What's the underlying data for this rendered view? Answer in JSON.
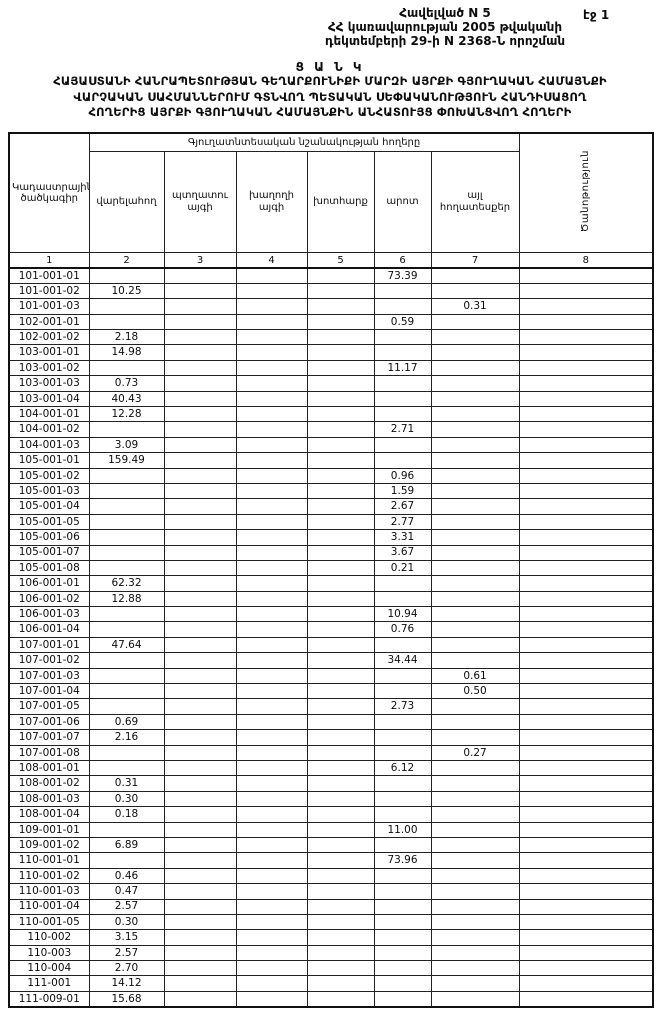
{
  "header": {
    "appendix": "Հավելված N 5",
    "decree_line1": "ՀՀ կառավարության 2005 թվականի",
    "decree_line2": "դեկտեմբերի 29-ի N 2368-Ն որոշման",
    "page_label": "էջ 1"
  },
  "title": {
    "main": "Ց Ա Ն Կ",
    "line1": "ՀԱՅԱՍՏԱՆԻ ՀԱՆՐԱՊԵՏՈՒԹՅԱՆ ԳԵՂԱՐՔՈՒՆԻՔԻ ՄԱՐԶԻ ԱՅՐՔԻ ԳՅՈՒՂԱԿԱՆ ՀԱՄԱՅՆՔԻ",
    "line2": "ՎԱՐՉԱԿԱՆ ՍԱՀՄԱՆՆԵՐՈՒՄ ԳՏՆՎՈՂ ՊԵՏԱԿԱՆ ՍԵՓԱԿԱՆՈՒԹՅՈՒՆ ՀԱՆԴԻՍԱՑՈՂ",
    "line3": "ՀՈՂԵՐԻՑ ԱՅՐՔԻ ԳՅՈՒՂԱԿԱՆ ՀԱՄԱՅՆՔԻՆ ԱՆՀԱՏՈՒՅՑ ՓՈԽԱՆՑՎՈՂ ՀՈՂԵՐԻ"
  },
  "table": {
    "code_header": "Կադաստրային ծածկագիր",
    "group_header": "Գյուղատնտեսական նշանակության հողերը",
    "sub_headers": [
      "վարելահող",
      "պտղատու այգի",
      "խաղողի այգի",
      "խոտհարք",
      "արոտ",
      "այլ հողատեսքեր"
    ],
    "note_header": "Ծանոթություն",
    "column_numbers": [
      "1",
      "2",
      "3",
      "4",
      "5",
      "6",
      "7",
      "8"
    ],
    "rows": [
      {
        "code": "101-001-01",
        "cells": [
          "",
          "",
          "",
          "",
          "73.39",
          "",
          ""
        ]
      },
      {
        "code": "101-001-02",
        "cells": [
          "10.25",
          "",
          "",
          "",
          "",
          "",
          ""
        ]
      },
      {
        "code": "101-001-03",
        "cells": [
          "",
          "",
          "",
          "",
          "",
          "0.31",
          ""
        ]
      },
      {
        "code": "102-001-01",
        "cells": [
          "",
          "",
          "",
          "",
          "0.59",
          "",
          ""
        ]
      },
      {
        "code": "102-001-02",
        "cells": [
          "2.18",
          "",
          "",
          "",
          "",
          "",
          ""
        ]
      },
      {
        "code": "103-001-01",
        "cells": [
          "14.98",
          "",
          "",
          "",
          "",
          "",
          ""
        ]
      },
      {
        "code": "103-001-02",
        "cells": [
          "",
          "",
          "",
          "",
          "11.17",
          "",
          ""
        ]
      },
      {
        "code": "103-001-03",
        "cells": [
          "0.73",
          "",
          "",
          "",
          "",
          "",
          ""
        ]
      },
      {
        "code": "103-001-04",
        "cells": [
          "40.43",
          "",
          "",
          "",
          "",
          "",
          ""
        ]
      },
      {
        "code": "104-001-01",
        "cells": [
          "12.28",
          "",
          "",
          "",
          "",
          "",
          ""
        ]
      },
      {
        "code": "104-001-02",
        "cells": [
          "",
          "",
          "",
          "",
          "2.71",
          "",
          ""
        ]
      },
      {
        "code": "104-001-03",
        "cells": [
          "3.09",
          "",
          "",
          "",
          "",
          "",
          ""
        ]
      },
      {
        "code": "105-001-01",
        "cells": [
          "159.49",
          "",
          "",
          "",
          "",
          "",
          ""
        ]
      },
      {
        "code": "105-001-02",
        "cells": [
          "",
          "",
          "",
          "",
          "0.96",
          "",
          ""
        ]
      },
      {
        "code": "105-001-03",
        "cells": [
          "",
          "",
          "",
          "",
          "1.59",
          "",
          ""
        ]
      },
      {
        "code": "105-001-04",
        "cells": [
          "",
          "",
          "",
          "",
          "2.67",
          "",
          ""
        ]
      },
      {
        "code": "105-001-05",
        "cells": [
          "",
          "",
          "",
          "",
          "2.77",
          "",
          ""
        ]
      },
      {
        "code": "105-001-06",
        "cells": [
          "",
          "",
          "",
          "",
          "3.31",
          "",
          ""
        ]
      },
      {
        "code": "105-001-07",
        "cells": [
          "",
          "",
          "",
          "",
          "3.67",
          "",
          ""
        ]
      },
      {
        "code": "105-001-08",
        "cells": [
          "",
          "",
          "",
          "",
          "0.21",
          "",
          ""
        ]
      },
      {
        "code": "106-001-01",
        "cells": [
          "62.32",
          "",
          "",
          "",
          "",
          "",
          ""
        ]
      },
      {
        "code": "106-001-02",
        "cells": [
          "12.88",
          "",
          "",
          "",
          "",
          "",
          ""
        ]
      },
      {
        "code": "106-001-03",
        "cells": [
          "",
          "",
          "",
          "",
          "10.94",
          "",
          ""
        ]
      },
      {
        "code": "106-001-04",
        "cells": [
          "",
          "",
          "",
          "",
          "0.76",
          "",
          ""
        ]
      },
      {
        "code": "107-001-01",
        "cells": [
          "47.64",
          "",
          "",
          "",
          "",
          "",
          ""
        ]
      },
      {
        "code": "107-001-02",
        "cells": [
          "",
          "",
          "",
          "",
          "34.44",
          "",
          ""
        ]
      },
      {
        "code": "107-001-03",
        "cells": [
          "",
          "",
          "",
          "",
          "",
          "0.61",
          ""
        ]
      },
      {
        "code": "107-001-04",
        "cells": [
          "",
          "",
          "",
          "",
          "",
          "0.50",
          ""
        ]
      },
      {
        "code": "107-001-05",
        "cells": [
          "",
          "",
          "",
          "",
          "2.73",
          "",
          ""
        ]
      },
      {
        "code": "107-001-06",
        "cells": [
          "0.69",
          "",
          "",
          "",
          "",
          "",
          ""
        ]
      },
      {
        "code": "107-001-07",
        "cells": [
          "2.16",
          "",
          "",
          "",
          "",
          "",
          ""
        ]
      },
      {
        "code": "107-001-08",
        "cells": [
          "",
          "",
          "",
          "",
          "",
          "0.27",
          ""
        ]
      },
      {
        "code": "108-001-01",
        "cells": [
          "",
          "",
          "",
          "",
          "6.12",
          "",
          ""
        ]
      },
      {
        "code": "108-001-02",
        "cells": [
          "0.31",
          "",
          "",
          "",
          "",
          "",
          ""
        ]
      },
      {
        "code": "108-001-03",
        "cells": [
          "0.30",
          "",
          "",
          "",
          "",
          "",
          ""
        ]
      },
      {
        "code": "108-001-04",
        "cells": [
          "0.18",
          "",
          "",
          "",
          "",
          "",
          ""
        ]
      },
      {
        "code": "109-001-01",
        "cells": [
          "",
          "",
          "",
          "",
          "11.00",
          "",
          ""
        ]
      },
      {
        "code": "109-001-02",
        "cells": [
          "6.89",
          "",
          "",
          "",
          "",
          "",
          ""
        ]
      },
      {
        "code": "110-001-01",
        "cells": [
          "",
          "",
          "",
          "",
          "73.96",
          "",
          ""
        ]
      },
      {
        "code": "110-001-02",
        "cells": [
          "0.46",
          "",
          "",
          "",
          "",
          "",
          ""
        ]
      },
      {
        "code": "110-001-03",
        "cells": [
          "0.47",
          "",
          "",
          "",
          "",
          "",
          ""
        ]
      },
      {
        "code": "110-001-04",
        "cells": [
          "2.57",
          "",
          "",
          "",
          "",
          "",
          ""
        ]
      },
      {
        "code": "110-001-05",
        "cells": [
          "0.30",
          "",
          "",
          "",
          "",
          "",
          ""
        ]
      },
      {
        "code": "110-002",
        "cells": [
          "3.15",
          "",
          "",
          "",
          "",
          "",
          ""
        ]
      },
      {
        "code": "110-003",
        "cells": [
          "2.57",
          "",
          "",
          "",
          "",
          "",
          ""
        ]
      },
      {
        "code": "110-004",
        "cells": [
          "2.70",
          "",
          "",
          "",
          "",
          "",
          ""
        ]
      },
      {
        "code": "111-001",
        "cells": [
          "14.12",
          "",
          "",
          "",
          "",
          "",
          ""
        ]
      },
      {
        "code": "111-009-01",
        "cells": [
          "15.68",
          "",
          "",
          "",
          "",
          "",
          ""
        ]
      }
    ]
  }
}
